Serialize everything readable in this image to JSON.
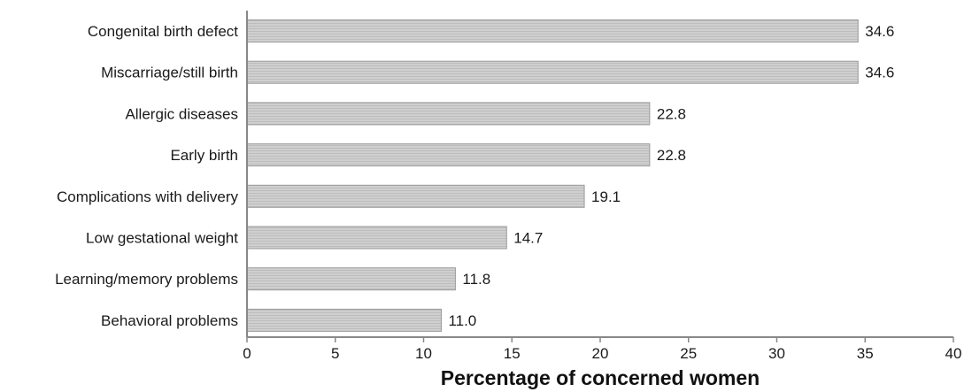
{
  "chart_data": {
    "type": "bar",
    "orientation": "horizontal",
    "title": "",
    "xlabel": "Percentage of concerned women",
    "ylabel": "",
    "xlim": [
      0,
      40
    ],
    "x_ticks": [
      0,
      5,
      10,
      15,
      20,
      25,
      30,
      35,
      40
    ],
    "grid": false,
    "legend": "none",
    "bar_color": "#c8c8c8",
    "bar_edge_color": "#9a9a9a",
    "axis_color": "#888888",
    "categories": [
      "Congenital birth defect",
      "Miscarriage/still birth",
      "Allergic diseases",
      "Early birth",
      "Complications with delivery",
      "Low gestational weight",
      "Learning/memory problems",
      "Behavioral problems"
    ],
    "values": [
      34.6,
      34.6,
      22.8,
      22.8,
      19.1,
      14.7,
      11.8,
      11.0
    ],
    "value_labels": [
      "34.6",
      "34.6",
      "22.8",
      "22.8",
      "19.1",
      "14.7",
      "11.8",
      "11.0"
    ]
  }
}
